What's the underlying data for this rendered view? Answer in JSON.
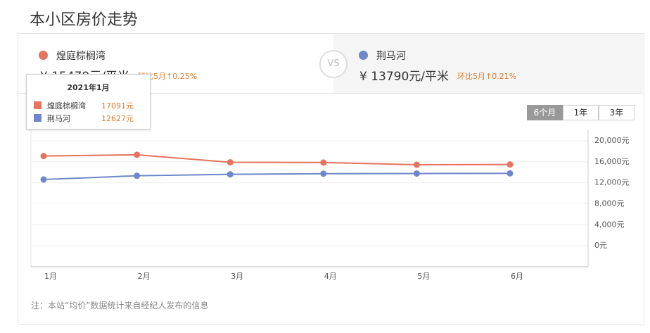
{
  "title": "本小区房价走势",
  "compare": {
    "vs": "VS",
    "items": [
      {
        "price": "¥ 15479元/平米",
        "change": "环比5月↑0.25%"
      },
      {
        "price": "¥ 13790元/平米",
        "change": "环比5月↑0.21%"
      }
    ]
  },
  "range_buttons": [
    "6个月",
    "1年",
    "3年"
  ],
  "tooltip": {
    "title": "2021年1月",
    "values": [
      "17091元",
      "12627元"
    ]
  },
  "chart_data": {
    "type": "line",
    "categories": [
      "1月",
      "2月",
      "3月",
      "4月",
      "5月",
      "6月"
    ],
    "series": [
      {
        "name": "煌庭棕榈湾",
        "color": "#e5735d",
        "values": [
          17091,
          17333,
          15900,
          15850,
          15440,
          15479
        ]
      },
      {
        "name": "荆马河",
        "color": "#6d87c8",
        "values": [
          12627,
          13333,
          13600,
          13730,
          13760,
          13790
        ]
      }
    ],
    "ylim": [
      -4000,
      22000
    ],
    "yticks": [
      {
        "value": 0,
        "label": "0元"
      },
      {
        "value": 4000,
        "label": "4,000元"
      },
      {
        "value": 8000,
        "label": "8,000元"
      },
      {
        "value": 12000,
        "label": "12,000元"
      },
      {
        "value": 16000,
        "label": "16,000元"
      },
      {
        "value": 20000,
        "label": "20,000元"
      }
    ],
    "grid": true,
    "y_axis_side": "right"
  },
  "note": "注：本站“均价”数据统计来自经纪人发布的信息"
}
